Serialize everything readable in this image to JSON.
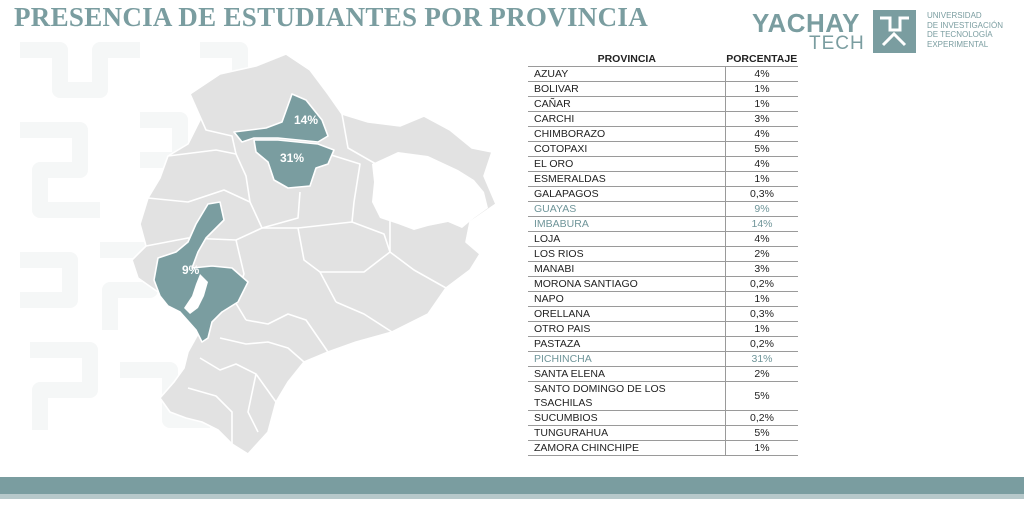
{
  "title": "PRESENCIA DE ESTUDIANTES POR PROVINCIA",
  "logo": {
    "word1": "YACHAY",
    "word2": "TECH",
    "subtitle_lines": [
      "UNIVERSIDAD",
      "DE INVESTIGACIÓN",
      "DE TECNOLOGÍA",
      "EXPERIMENTAL"
    ]
  },
  "colors": {
    "accent": "#7a9da0",
    "map_base": "#e2e2e2",
    "map_highlight": "#7a9da0",
    "map_border": "#ffffff"
  },
  "map_labels": {
    "imbabura": "14%",
    "pichincha": "31%",
    "guayas": "9%"
  },
  "table": {
    "headers": {
      "province": "PROVINCIA",
      "percentage": "PORCENTAJE"
    },
    "rows": [
      {
        "province": "AZUAY",
        "percentage": "4%",
        "highlight": false
      },
      {
        "province": "BOLIVAR",
        "percentage": "1%",
        "highlight": false
      },
      {
        "province": "CAÑAR",
        "percentage": "1%",
        "highlight": false
      },
      {
        "province": "CARCHI",
        "percentage": "3%",
        "highlight": false
      },
      {
        "province": "CHIMBORAZO",
        "percentage": "4%",
        "highlight": false
      },
      {
        "province": "COTOPAXI",
        "percentage": "5%",
        "highlight": false
      },
      {
        "province": "EL ORO",
        "percentage": "4%",
        "highlight": false
      },
      {
        "province": "ESMERALDAS",
        "percentage": "1%",
        "highlight": false
      },
      {
        "province": "GALAPAGOS",
        "percentage": "0,3%",
        "highlight": false
      },
      {
        "province": "GUAYAS",
        "percentage": "9%",
        "highlight": true
      },
      {
        "province": "IMBABURA",
        "percentage": "14%",
        "highlight": true
      },
      {
        "province": "LOJA",
        "percentage": "4%",
        "highlight": false
      },
      {
        "province": "LOS RIOS",
        "percentage": "2%",
        "highlight": false
      },
      {
        "province": "MANABI",
        "percentage": "3%",
        "highlight": false
      },
      {
        "province": "MORONA SANTIAGO",
        "percentage": "0,2%",
        "highlight": false
      },
      {
        "province": "NAPO",
        "percentage": "1%",
        "highlight": false
      },
      {
        "province": "ORELLANA",
        "percentage": "0,3%",
        "highlight": false
      },
      {
        "province": "OTRO PAIS",
        "percentage": "1%",
        "highlight": false
      },
      {
        "province": "PASTAZA",
        "percentage": "0,2%",
        "highlight": false
      },
      {
        "province": "PICHINCHA",
        "percentage": "31%",
        "highlight": true
      },
      {
        "province": "SANTA ELENA",
        "percentage": "2%",
        "highlight": false
      },
      {
        "province": "SANTO DOMINGO DE LOS TSACHILAS",
        "percentage": "5%",
        "highlight": false
      },
      {
        "province": "SUCUMBIOS",
        "percentage": "0,2%",
        "highlight": false
      },
      {
        "province": "TUNGURAHUA",
        "percentage": "5%",
        "highlight": false
      },
      {
        "province": "ZAMORA CHINCHIPE",
        "percentage": "1%",
        "highlight": false
      }
    ]
  }
}
